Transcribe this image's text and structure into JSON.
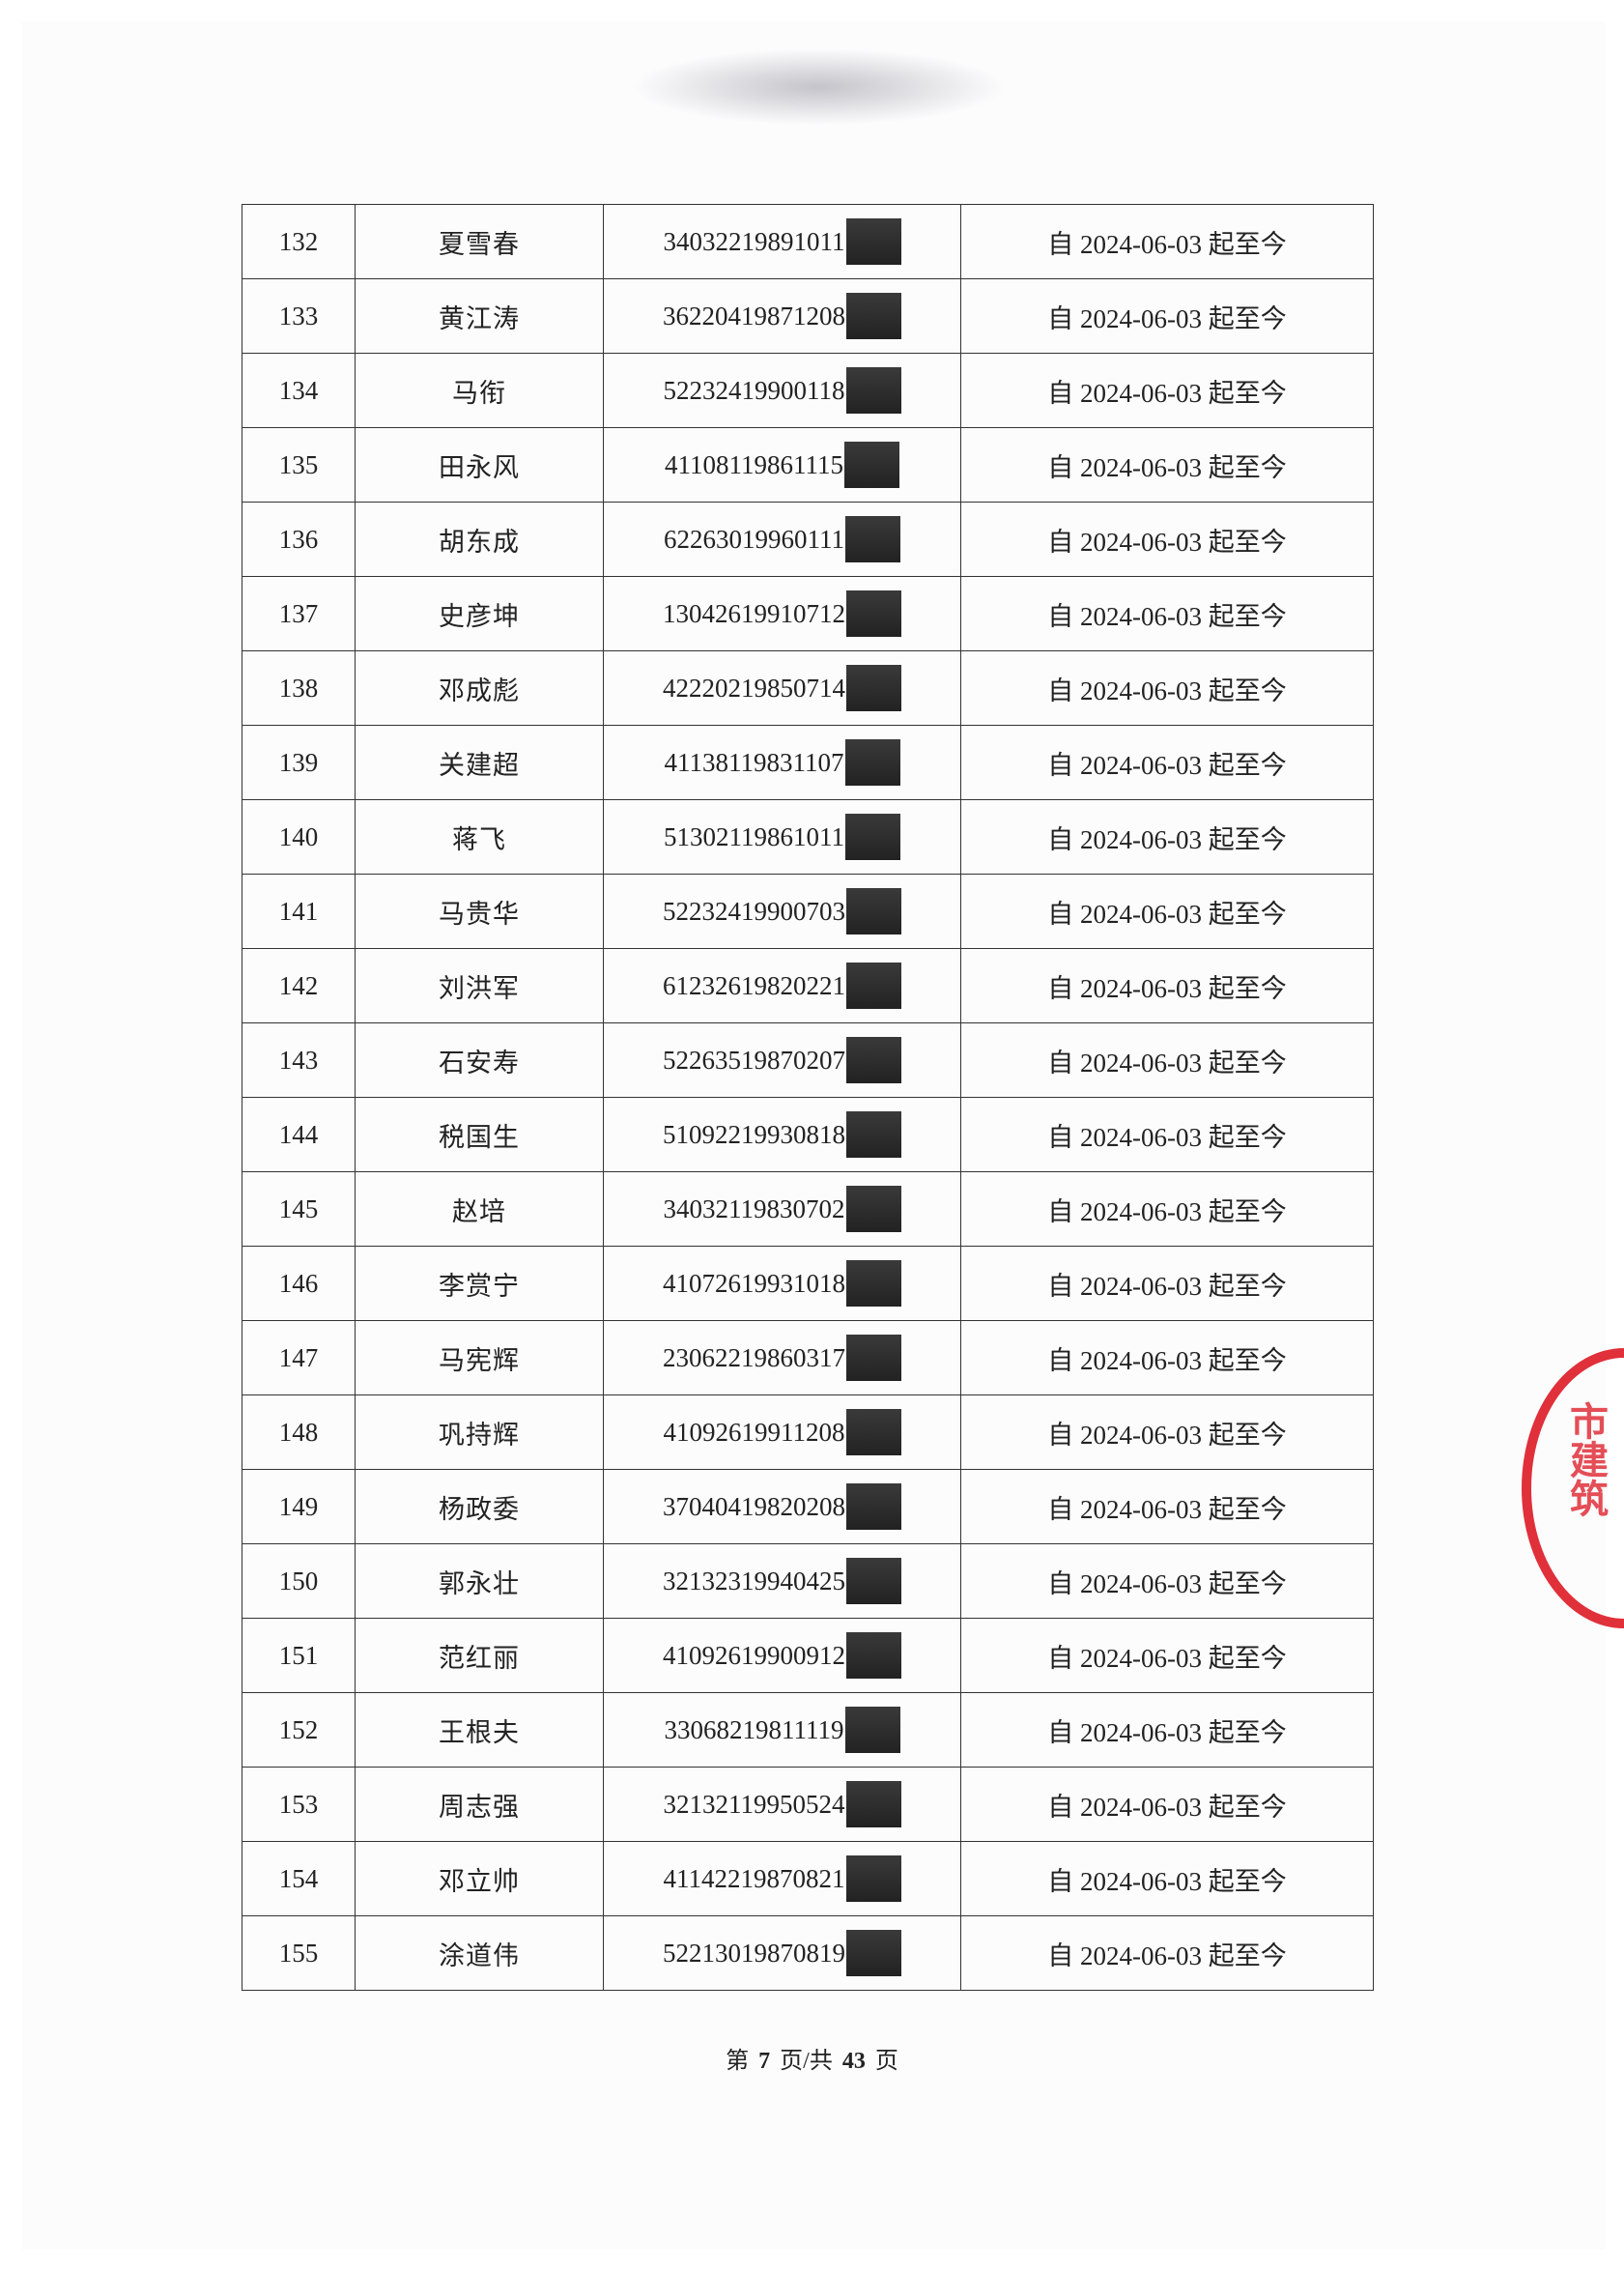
{
  "rows": [
    {
      "no": "132",
      "name": "夏雪春",
      "id": "34032219891011",
      "period": "自 2024-06-03 起至今"
    },
    {
      "no": "133",
      "name": "黄江涛",
      "id": "36220419871208",
      "period": "自 2024-06-03 起至今"
    },
    {
      "no": "134",
      "name": "马衔",
      "id": "52232419900118",
      "period": "自 2024-06-03 起至今"
    },
    {
      "no": "135",
      "name": "田永风",
      "id": "41108119861115",
      "period": "自 2024-06-03 起至今"
    },
    {
      "no": "136",
      "name": "胡东成",
      "id": "62263019960111",
      "period": "自 2024-06-03 起至今"
    },
    {
      "no": "137",
      "name": "史彦坤",
      "id": "13042619910712",
      "period": "自 2024-06-03 起至今"
    },
    {
      "no": "138",
      "name": "邓成彪",
      "id": "42220219850714",
      "period": "自 2024-06-03 起至今"
    },
    {
      "no": "139",
      "name": "关建超",
      "id": "41138119831107",
      "period": "自 2024-06-03 起至今"
    },
    {
      "no": "140",
      "name": "蒋飞",
      "id": "51302119861011",
      "period": "自 2024-06-03 起至今"
    },
    {
      "no": "141",
      "name": "马贵华",
      "id": "52232419900703",
      "period": "自 2024-06-03 起至今"
    },
    {
      "no": "142",
      "name": "刘洪军",
      "id": "61232619820221",
      "period": "自 2024-06-03 起至今"
    },
    {
      "no": "143",
      "name": "石安寿",
      "id": "52263519870207",
      "period": "自 2024-06-03 起至今"
    },
    {
      "no": "144",
      "name": "税国生",
      "id": "51092219930818",
      "period": "自 2024-06-03 起至今"
    },
    {
      "no": "145",
      "name": "赵培",
      "id": "34032119830702",
      "period": "自 2024-06-03 起至今"
    },
    {
      "no": "146",
      "name": "李赏宁",
      "id": "41072619931018",
      "period": "自 2024-06-03 起至今"
    },
    {
      "no": "147",
      "name": "马宪辉",
      "id": "23062219860317",
      "period": "自 2024-06-03 起至今"
    },
    {
      "no": "148",
      "name": "巩持辉",
      "id": "41092619911208",
      "period": "自 2024-06-03 起至今"
    },
    {
      "no": "149",
      "name": "杨政委",
      "id": "37040419820208",
      "period": "自 2024-06-03 起至今"
    },
    {
      "no": "150",
      "name": "郭永壮",
      "id": "32132319940425",
      "period": "自 2024-06-03 起至今"
    },
    {
      "no": "151",
      "name": "范红丽",
      "id": "41092619900912",
      "period": "自 2024-06-03 起至今"
    },
    {
      "no": "152",
      "name": "王根夫",
      "id": "33068219811119",
      "period": "自 2024-06-03 起至今"
    },
    {
      "no": "153",
      "name": "周志强",
      "id": "32132119950524",
      "period": "自 2024-06-03 起至今"
    },
    {
      "no": "154",
      "name": "邓立帅",
      "id": "41142219870821",
      "period": "自 2024-06-03 起至今"
    },
    {
      "no": "155",
      "name": "涂道伟",
      "id": "52213019870819",
      "period": "自 2024-06-03 起至今"
    }
  ],
  "footer": {
    "prefix": "第",
    "page": "7",
    "middle": "页/共",
    "total": "43",
    "suffix": "页"
  },
  "stamp": {
    "color": "#e0303a",
    "text": "市建筑"
  }
}
